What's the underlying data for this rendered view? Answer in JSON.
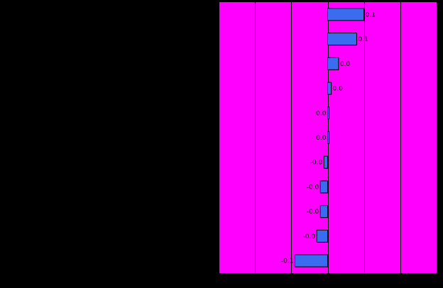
{
  "chart_data": {
    "type": "bar",
    "orientation": "horizontal",
    "title": "",
    "xlabel": "",
    "ylabel": "",
    "xlim": [
      -0.3,
      0.3
    ],
    "gridlines_x": [
      -0.3,
      -0.2,
      -0.1,
      0.0,
      0.1,
      0.2,
      0.3
    ],
    "grid": true,
    "legend": "none",
    "values": [
      0.1,
      0.08,
      0.03,
      0.01,
      0.0,
      0.0,
      -0.01,
      -0.02,
      -0.02,
      -0.03,
      -0.09
    ],
    "labels": [
      "0.1",
      "0.1",
      "0.0",
      "0.0",
      "0.0",
      "0.0",
      "-0.0",
      "-0.0",
      "-0.0",
      "-0.0",
      "-0.1"
    ]
  },
  "colors": {
    "page_background": "#000000",
    "plot_background": "#ff00ff",
    "bar_fill": "#3a6cf0",
    "bar_stroke": "#000000",
    "gridline": "#000000",
    "label_text": "#000000"
  }
}
